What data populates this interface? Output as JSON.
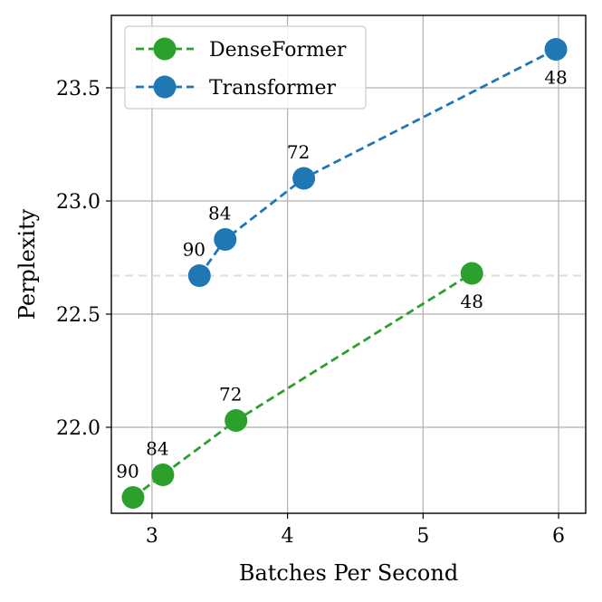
{
  "chart_data": {
    "type": "line",
    "xlabel": "Batches Per Second",
    "ylabel": "Perplexity",
    "xlim": [
      2.7,
      6.2
    ],
    "ylim": [
      21.62,
      23.82
    ],
    "xticks": [
      3,
      4,
      5,
      6
    ],
    "yticks": [
      22.0,
      22.5,
      23.0,
      23.5
    ],
    "xtick_labels": [
      "3",
      "4",
      "5",
      "6"
    ],
    "ytick_labels": [
      "22.0",
      "22.5",
      "23.0",
      "23.5"
    ],
    "grid": true,
    "legend_position": "top-left",
    "reference_line": {
      "y": 22.67,
      "style": "dashed",
      "color": "#e0e0e0"
    },
    "series": [
      {
        "name": "DenseFormer",
        "color": "#2ca02c",
        "points": [
          {
            "x": 2.86,
            "y": 21.69,
            "label": "90"
          },
          {
            "x": 3.08,
            "y": 21.79,
            "label": "84"
          },
          {
            "x": 3.62,
            "y": 22.03,
            "label": "72"
          },
          {
            "x": 5.36,
            "y": 22.68,
            "label": "48"
          }
        ]
      },
      {
        "name": "Transformer",
        "color": "#1f77b4",
        "points": [
          {
            "x": 3.35,
            "y": 22.67,
            "label": "90"
          },
          {
            "x": 3.54,
            "y": 22.83,
            "label": "84"
          },
          {
            "x": 4.12,
            "y": 23.1,
            "label": "72"
          },
          {
            "x": 5.98,
            "y": 23.67,
            "label": "48"
          }
        ]
      }
    ]
  }
}
